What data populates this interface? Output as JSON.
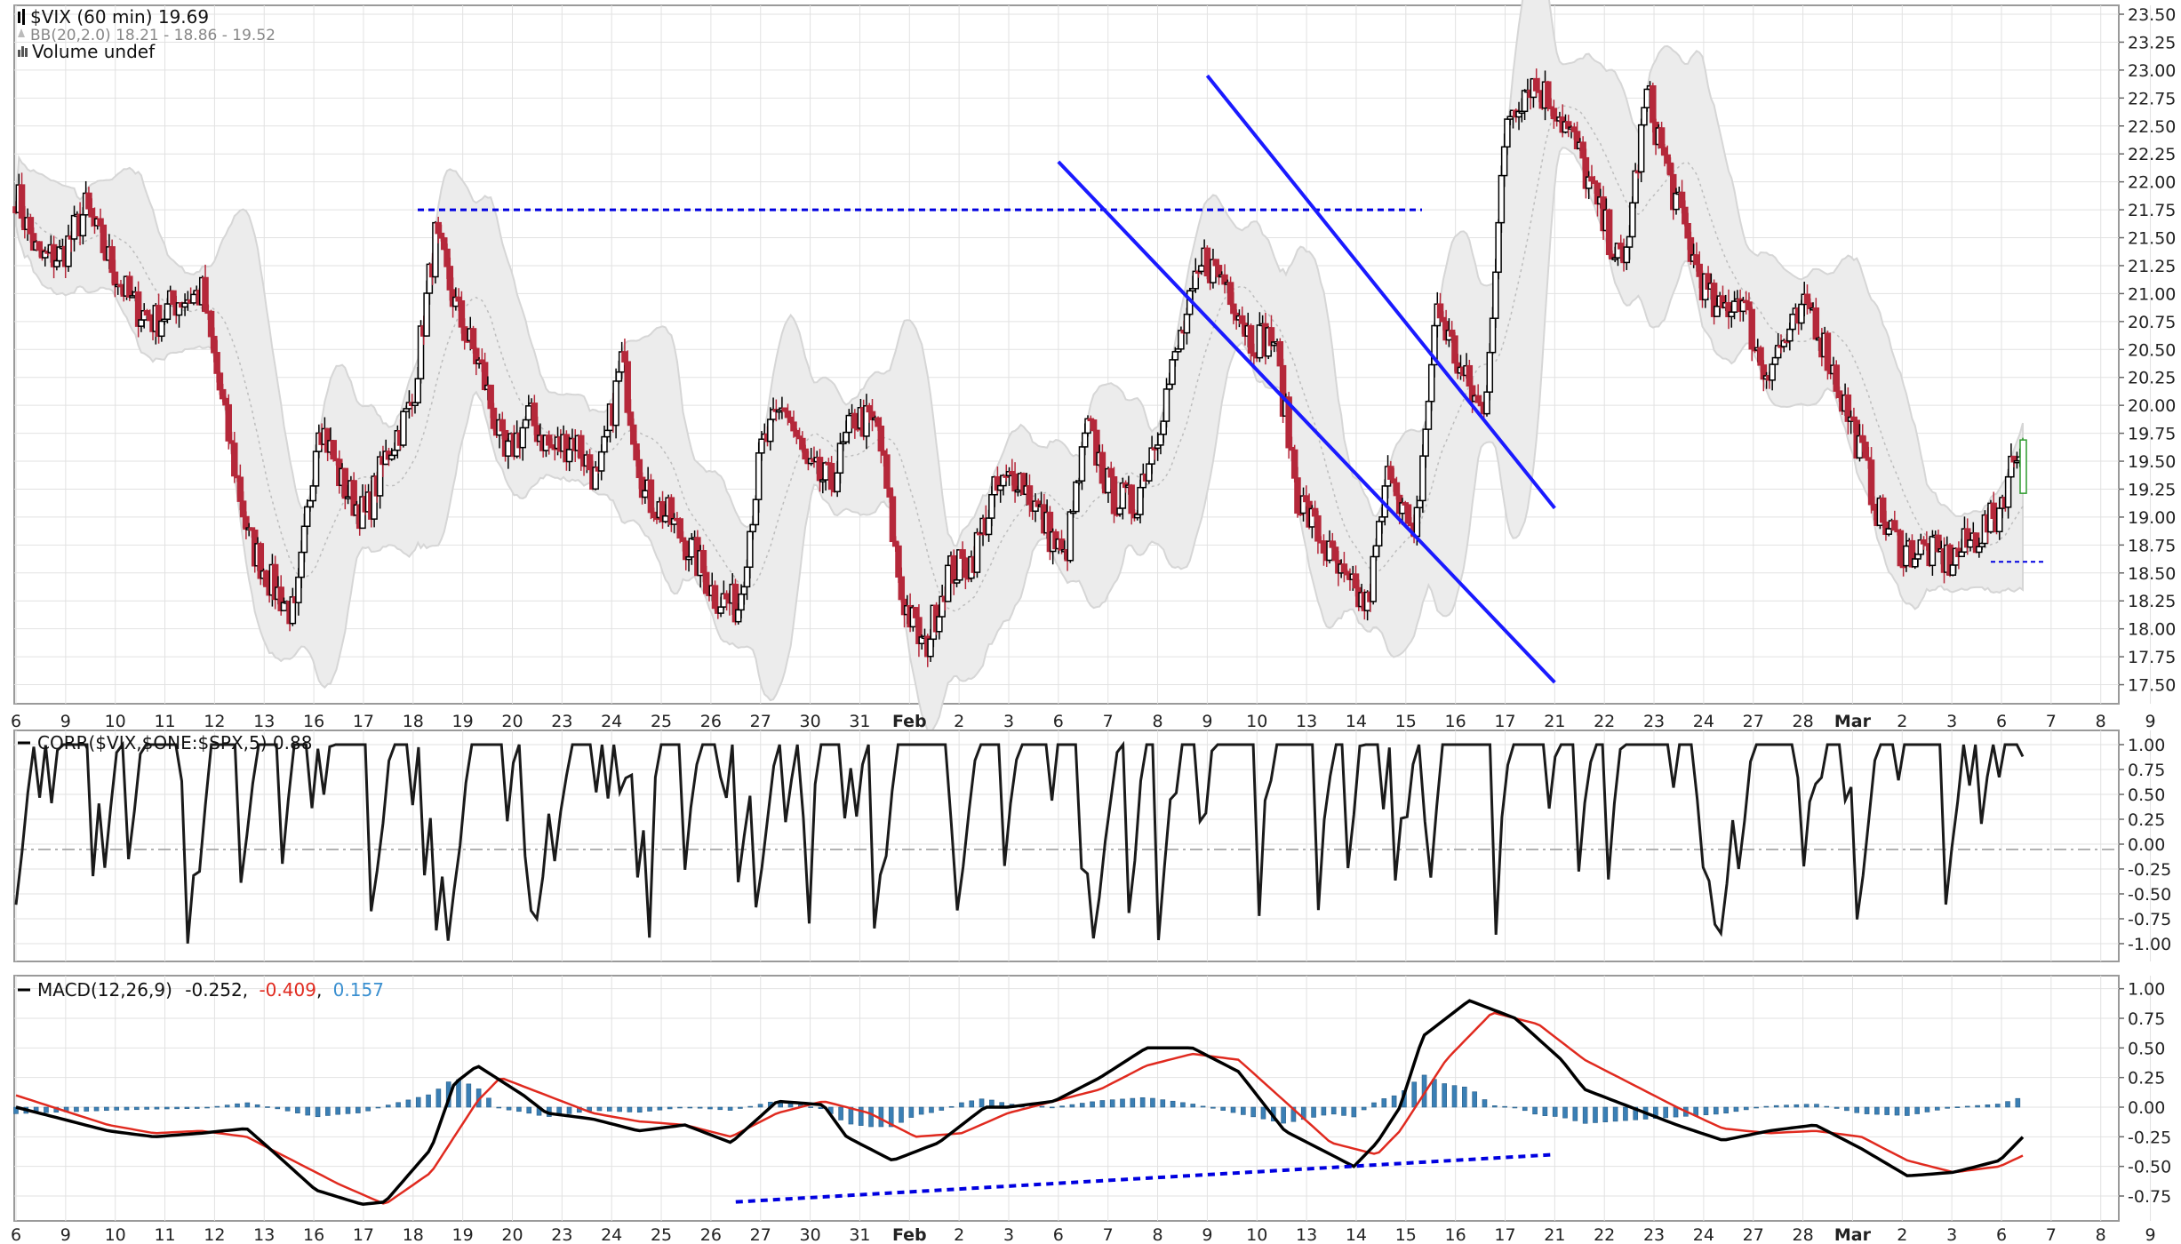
{
  "chart_data": [
    {
      "type": "candlestick",
      "panel": "price",
      "title": "$VIX (60 min) 19.69",
      "bb_label": "BB(20,2.0) 18.21 - 18.86 - 19.52",
      "volume_label": "Volume undef",
      "ylim": [
        17.25,
        23.5
      ],
      "y_ticks": [
        "23.50",
        "23.25",
        "23.00",
        "22.75",
        "22.50",
        "22.25",
        "22.00",
        "21.75",
        "21.50",
        "21.25",
        "21.00",
        "20.75",
        "20.50",
        "20.25",
        "20.00",
        "19.75",
        "19.50",
        "19.25",
        "19.00",
        "18.75",
        "18.50",
        "18.25",
        "18.00",
        "17.75",
        "17.50"
      ],
      "x_ticks": [
        "6",
        "9",
        "10",
        "11",
        "12",
        "13",
        "16",
        "17",
        "18",
        "19",
        "20",
        "23",
        "24",
        "25",
        "26",
        "27",
        "30",
        "31",
        "Feb",
        "2",
        "3",
        "6",
        "7",
        "8",
        "9",
        "10",
        "13",
        "14",
        "15",
        "16",
        "17",
        "21",
        "22",
        "23",
        "24",
        "27",
        "28",
        "Mar",
        "2",
        "3",
        "6",
        "7",
        "8",
        "9"
      ],
      "x_tick_bold": [
        "Feb",
        "Mar"
      ],
      "close_anchors": [
        [
          0,
          21.9
        ],
        [
          8,
          21.3
        ],
        [
          16,
          21.35
        ],
        [
          24,
          21.75
        ],
        [
          32,
          21.3
        ],
        [
          40,
          20.9
        ],
        [
          48,
          20.75
        ],
        [
          56,
          20.95
        ],
        [
          64,
          21.0
        ],
        [
          72,
          19.85
        ],
        [
          80,
          18.8
        ],
        [
          88,
          18.4
        ],
        [
          96,
          18.1
        ],
        [
          104,
          19.9
        ],
        [
          112,
          19.3
        ],
        [
          120,
          19.0
        ],
        [
          128,
          19.6
        ],
        [
          136,
          20.0
        ],
        [
          144,
          21.5
        ],
        [
          152,
          20.8
        ],
        [
          160,
          20.3
        ],
        [
          168,
          19.5
        ],
        [
          176,
          19.9
        ],
        [
          184,
          19.6
        ],
        [
          192,
          19.7
        ],
        [
          200,
          19.3
        ],
        [
          208,
          20.4
        ],
        [
          216,
          19.2
        ],
        [
          224,
          19.0
        ],
        [
          232,
          18.7
        ],
        [
          240,
          18.3
        ],
        [
          248,
          18.2
        ],
        [
          256,
          19.6
        ],
        [
          264,
          20.0
        ],
        [
          272,
          19.4
        ],
        [
          280,
          19.3
        ],
        [
          288,
          19.9
        ],
        [
          296,
          19.8
        ],
        [
          304,
          18.3
        ],
        [
          312,
          17.8
        ],
        [
          320,
          18.5
        ],
        [
          328,
          18.6
        ],
        [
          336,
          19.2
        ],
        [
          344,
          19.4
        ],
        [
          352,
          19.0
        ],
        [
          360,
          18.6
        ],
        [
          368,
          19.8
        ],
        [
          376,
          19.2
        ],
        [
          384,
          19.1
        ],
        [
          392,
          19.8
        ],
        [
          400,
          20.6
        ],
        [
          408,
          21.3
        ],
        [
          416,
          21.1
        ],
        [
          424,
          20.6
        ],
        [
          432,
          20.6
        ],
        [
          440,
          19.2
        ],
        [
          448,
          18.8
        ],
        [
          456,
          18.4
        ],
        [
          464,
          18.2
        ],
        [
          472,
          19.5
        ],
        [
          480,
          18.7
        ],
        [
          488,
          20.9
        ],
        [
          496,
          20.3
        ],
        [
          504,
          19.9
        ],
        [
          512,
          22.6
        ],
        [
          520,
          22.9
        ],
        [
          528,
          22.7
        ],
        [
          536,
          22.3
        ],
        [
          544,
          21.7
        ],
        [
          552,
          21.2
        ],
        [
          560,
          22.8
        ],
        [
          568,
          22.0
        ],
        [
          576,
          21.3
        ],
        [
          584,
          20.8
        ],
        [
          592,
          21.0
        ],
        [
          600,
          20.3
        ],
        [
          608,
          20.6
        ],
        [
          616,
          20.9
        ],
        [
          624,
          20.3
        ],
        [
          632,
          19.7
        ],
        [
          640,
          19.0
        ],
        [
          648,
          18.7
        ],
        [
          656,
          18.7
        ],
        [
          664,
          18.6
        ],
        [
          672,
          18.8
        ],
        [
          680,
          19.0
        ],
        [
          688,
          19.69
        ]
      ],
      "channel_upper": [
        [
          22.95,
          24.0
        ],
        [
          19.08,
          31.0
        ]
      ],
      "channel_lower": [
        [
          22.18,
          21.0
        ],
        [
          17.52,
          31.0
        ]
      ],
      "resistance_level": 21.75
    },
    {
      "type": "line",
      "panel": "correlation",
      "label": "CORR($VIX,$ONE:$SPX,5) 0.88",
      "ylim": [
        -1.0,
        1.0
      ],
      "y_ticks": [
        "1.00",
        "0.75",
        "0.50",
        "0.25",
        "0.00",
        "-0.25",
        "-0.50",
        "-0.75",
        "-1.00"
      ],
      "last_value": 0.88
    },
    {
      "type": "macd",
      "panel": "macd",
      "label_prefix": "MACD(12,26,9)",
      "macd_value": "-0.252",
      "signal_value": "-0.409",
      "hist_value": "0.157",
      "ylim": [
        -0.9,
        1.05
      ],
      "y_ticks": [
        "1.00",
        "0.75",
        "0.50",
        "0.25",
        "0.00",
        "-0.25",
        "-0.50",
        "-0.75"
      ],
      "macd_anchors": [
        [
          0,
          0.0
        ],
        [
          4,
          -0.2
        ],
        [
          6,
          -0.25
        ],
        [
          8,
          -0.22
        ],
        [
          10,
          -0.18
        ],
        [
          11,
          -0.35
        ],
        [
          13,
          -0.7
        ],
        [
          15,
          -0.82
        ],
        [
          16,
          -0.8
        ],
        [
          18,
          -0.35
        ],
        [
          19,
          0.2
        ],
        [
          20,
          0.35
        ],
        [
          22,
          0.1
        ],
        [
          23,
          -0.05
        ],
        [
          25,
          -0.1
        ],
        [
          27,
          -0.2
        ],
        [
          29,
          -0.15
        ],
        [
          31,
          -0.3
        ],
        [
          33,
          0.05
        ],
        [
          35,
          0.02
        ],
        [
          36,
          -0.25
        ],
        [
          38,
          -0.45
        ],
        [
          40,
          -0.3
        ],
        [
          42,
          0.0
        ],
        [
          43,
          0.0
        ],
        [
          45,
          0.05
        ],
        [
          47,
          0.25
        ],
        [
          49,
          0.5
        ],
        [
          51,
          0.5
        ],
        [
          53,
          0.3
        ],
        [
          55,
          -0.2
        ],
        [
          57,
          -0.4
        ],
        [
          58,
          -0.5
        ],
        [
          59,
          -0.3
        ],
        [
          60,
          0.0
        ],
        [
          61,
          0.6
        ],
        [
          63,
          0.9
        ],
        [
          65,
          0.75
        ],
        [
          67,
          0.4
        ],
        [
          68,
          0.15
        ],
        [
          70,
          0.0
        ],
        [
          72,
          -0.15
        ],
        [
          74,
          -0.28
        ],
        [
          76,
          -0.2
        ],
        [
          78,
          -0.15
        ],
        [
          80,
          -0.35
        ],
        [
          82,
          -0.58
        ],
        [
          84,
          -0.55
        ],
        [
          86,
          -0.45
        ],
        [
          87,
          -0.252
        ]
      ],
      "signal_anchors": [
        [
          0,
          0.1
        ],
        [
          4,
          -0.15
        ],
        [
          6,
          -0.22
        ],
        [
          8,
          -0.2
        ],
        [
          10,
          -0.25
        ],
        [
          12,
          -0.45
        ],
        [
          14,
          -0.65
        ],
        [
          16,
          -0.82
        ],
        [
          18,
          -0.55
        ],
        [
          20,
          0.05
        ],
        [
          21,
          0.25
        ],
        [
          23,
          0.1
        ],
        [
          25,
          -0.05
        ],
        [
          27,
          -0.12
        ],
        [
          29,
          -0.15
        ],
        [
          31,
          -0.25
        ],
        [
          33,
          -0.05
        ],
        [
          35,
          0.05
        ],
        [
          37,
          -0.05
        ],
        [
          39,
          -0.25
        ],
        [
          41,
          -0.22
        ],
        [
          43,
          -0.05
        ],
        [
          45,
          0.05
        ],
        [
          47,
          0.15
        ],
        [
          49,
          0.35
        ],
        [
          51,
          0.45
        ],
        [
          53,
          0.4
        ],
        [
          55,
          0.05
        ],
        [
          57,
          -0.3
        ],
        [
          59,
          -0.4
        ],
        [
          60,
          -0.2
        ],
        [
          62,
          0.4
        ],
        [
          64,
          0.8
        ],
        [
          66,
          0.7
        ],
        [
          68,
          0.4
        ],
        [
          70,
          0.2
        ],
        [
          72,
          0.0
        ],
        [
          74,
          -0.18
        ],
        [
          76,
          -0.22
        ],
        [
          78,
          -0.2
        ],
        [
          80,
          -0.25
        ],
        [
          82,
          -0.45
        ],
        [
          84,
          -0.55
        ],
        [
          86,
          -0.5
        ],
        [
          87,
          -0.409
        ]
      ],
      "divergence_line": [
        [
          -0.8,
          14.5
        ],
        [
          -0.4,
          31.0
        ]
      ]
    }
  ],
  "colors": {
    "bear": "#b5283a",
    "bull": "#000000",
    "last_bull": "#2e9b2e",
    "band_fill": "#ececec",
    "band_edge": "#d6d6d6",
    "channel": "#1a1aff",
    "dash": "#0000e0",
    "hist": "#3a7fb5",
    "signal": "#e02a1f",
    "macd_line": "#000000",
    "hist_label": "#3a8fd0",
    "grid": "#e2e2e2"
  }
}
